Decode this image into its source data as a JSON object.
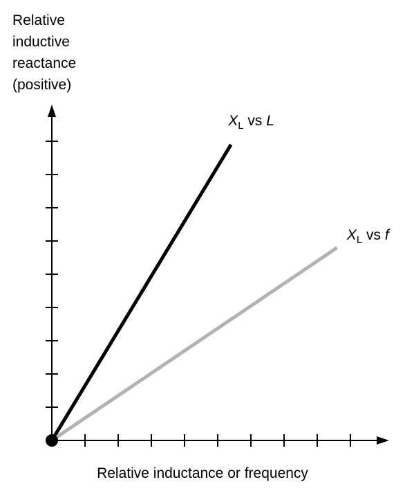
{
  "chart_data": {
    "type": "line",
    "ylabel_lines": [
      "Relative",
      "inductive",
      "reactance",
      "(positive)"
    ],
    "xlabel": "Relative inductance or frequency",
    "xlim": [
      0,
      10
    ],
    "ylim": [
      0,
      10
    ],
    "x_ticks": 9,
    "y_ticks": 9,
    "grid": false,
    "series": [
      {
        "name": "XL vs L",
        "name_parts": {
          "var": "X",
          "sub": "L",
          "mid": " vs ",
          "var2": "L"
        },
        "color": "#000000",
        "x": [
          0,
          5.4
        ],
        "y": [
          0,
          8.9
        ]
      },
      {
        "name": "XL vs f",
        "name_parts": {
          "var": "X",
          "sub": "L",
          "mid": " vs ",
          "var2": "f"
        },
        "color": "#b3b3b3",
        "x": [
          0,
          8.6
        ],
        "y": [
          0,
          5.8
        ]
      }
    ]
  }
}
